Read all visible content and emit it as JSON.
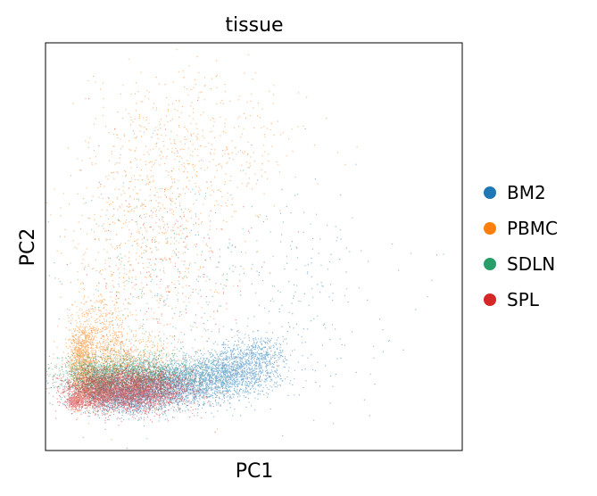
{
  "chart_data": {
    "type": "scatter",
    "title": "tissue",
    "xlabel": "PC1",
    "ylabel": "PC2",
    "xticks": false,
    "yticks": false,
    "grid": false,
    "legend_placement": "right",
    "xlim": [
      0,
      100
    ],
    "ylim": [
      0,
      100
    ],
    "series": [
      {
        "name": "BM2",
        "color": "#1f77b4",
        "clusters": [
          {
            "cx": 28,
            "cy": 16,
            "sx": 9,
            "sy": 2.6,
            "n": 2600
          },
          {
            "cx": 44,
            "cy": 19,
            "sx": 6,
            "sy": 2.6,
            "n": 1300
          },
          {
            "cx": 19,
            "cy": 12.5,
            "sx": 5,
            "sy": 1.8,
            "n": 900
          },
          {
            "cx": 51,
            "cy": 24,
            "sx": 3.5,
            "sy": 2.4,
            "n": 350
          },
          {
            "cx": 60,
            "cy": 38,
            "sx": 12,
            "sy": 14,
            "n": 220
          }
        ]
      },
      {
        "name": "PBMC",
        "color": "#ff7f0e",
        "clusters": [
          {
            "cx": 8.5,
            "cy": 22,
            "sx": 1.6,
            "sy": 4.5,
            "n": 900
          },
          {
            "cx": 13,
            "cy": 28,
            "sx": 3.5,
            "sy": 6,
            "n": 500
          },
          {
            "cx": 24,
            "cy": 55,
            "sx": 9,
            "sy": 16,
            "n": 700
          },
          {
            "cx": 38,
            "cy": 74,
            "sx": 12,
            "sy": 10,
            "n": 420
          },
          {
            "cx": 18,
            "cy": 22,
            "sx": 6,
            "sy": 3.5,
            "n": 600
          }
        ]
      },
      {
        "name": "SDLN",
        "color": "#279e68",
        "clusters": [
          {
            "cx": 20,
            "cy": 19,
            "sx": 9,
            "sy": 2.5,
            "n": 1600
          },
          {
            "cx": 12,
            "cy": 17,
            "sx": 3,
            "sy": 2.2,
            "n": 600
          },
          {
            "cx": 30,
            "cy": 40,
            "sx": 12,
            "sy": 14,
            "n": 280
          }
        ]
      },
      {
        "name": "SPL",
        "color": "#d62728",
        "clusters": [
          {
            "cx": 20,
            "cy": 15,
            "sx": 7,
            "sy": 2.6,
            "n": 3200
          },
          {
            "cx": 11,
            "cy": 14,
            "sx": 3,
            "sy": 2,
            "n": 800
          },
          {
            "cx": 7,
            "cy": 12,
            "sx": 1,
            "sy": 0.9,
            "n": 250
          },
          {
            "cx": 32,
            "cy": 42,
            "sx": 13,
            "sy": 16,
            "n": 200
          }
        ]
      }
    ]
  }
}
